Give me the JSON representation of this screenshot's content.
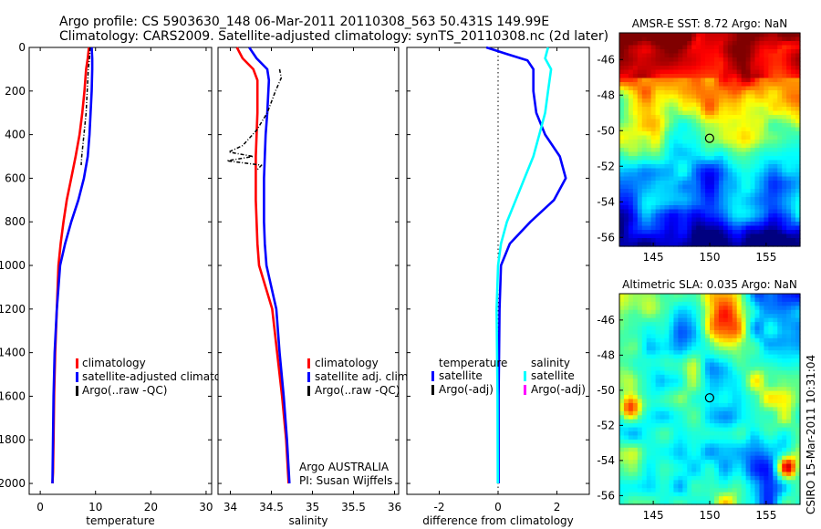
{
  "header": {
    "line1": "Argo profile: CS 5903630_148 06-Mar-2011 20110308_563 50.431S 149.99E",
    "line2": "Climatology: CARS2009. Satellite-adjusted climatology: synTS_20110308.nc (2d later)"
  },
  "side_stamp": "CSIRO 15-Mar-2011 10:31:04",
  "colors": {
    "climatology": "#ff0000",
    "satellite": "#0000ff",
    "argo": "#000000",
    "salinity_satellite": "#00ffff",
    "argo_adj_salinity": "#ff00ff"
  },
  "chart_data": [
    {
      "type": "line",
      "id": "temperature",
      "xlabel": "temperature",
      "ylabel": "",
      "xlim": [
        -2,
        31
      ],
      "ylim": [
        2050,
        0
      ],
      "xticks": [
        0,
        10,
        20,
        30
      ],
      "yticks": [
        0,
        200,
        400,
        600,
        800,
        1000,
        1200,
        1400,
        1600,
        1800,
        2000
      ],
      "legend": [
        "climatology",
        "satellite-adjusted climatology",
        "Argo(..raw -QC)"
      ],
      "series": [
        {
          "name": "climatology",
          "color": "#ff0000",
          "x": [
            8.8,
            8.6,
            8.3,
            8.0,
            7.6,
            7.1,
            6.4,
            5.6,
            4.8,
            4.2,
            3.7,
            3.3,
            3.0,
            2.7,
            2.5,
            2.4,
            2.3,
            2.2
          ],
          "y": [
            0,
            50,
            100,
            200,
            300,
            400,
            500,
            600,
            700,
            800,
            900,
            1000,
            1200,
            1400,
            1600,
            1800,
            1950,
            2000
          ]
        },
        {
          "name": "satellite-adjusted climatology",
          "color": "#0000ff",
          "x": [
            9.3,
            9.4,
            9.4,
            9.3,
            9.1,
            8.9,
            8.6,
            7.9,
            6.9,
            5.6,
            4.5,
            3.6,
            3.0,
            2.6,
            2.4,
            2.3,
            2.2
          ],
          "y": [
            0,
            50,
            100,
            200,
            300,
            400,
            500,
            600,
            700,
            800,
            900,
            1000,
            1200,
            1400,
            1600,
            1800,
            2000
          ]
        },
        {
          "name": "Argo(..raw -QC)",
          "color": "#000000",
          "x": [
            9.0,
            8.9,
            8.7,
            8.5,
            8.3,
            8.1,
            7.9,
            7.7,
            7.5,
            7.4
          ],
          "y": [
            0,
            50,
            100,
            200,
            300,
            350,
            400,
            450,
            500,
            540
          ]
        }
      ]
    },
    {
      "type": "line",
      "id": "salinity",
      "xlabel": "salinity",
      "ylabel": "",
      "xlim": [
        33.85,
        36.05
      ],
      "ylim": [
        2050,
        0
      ],
      "xticks": [
        34,
        34.5,
        35,
        35.5,
        36
      ],
      "legend": [
        "climatology",
        "satellite adj. clim.",
        "Argo(..raw -QC)"
      ],
      "annotation": [
        "Argo AUSTRALIA",
        "PI: Susan Wijffels"
      ],
      "series": [
        {
          "name": "climatology",
          "color": "#ff0000",
          "x": [
            34.08,
            34.15,
            34.28,
            34.33,
            34.33,
            34.32,
            34.31,
            34.31,
            34.31,
            34.32,
            34.33,
            34.35,
            34.43,
            34.51,
            34.57,
            34.63,
            34.68,
            34.71
          ],
          "y": [
            0,
            50,
            100,
            150,
            300,
            400,
            500,
            600,
            700,
            800,
            900,
            1000,
            1100,
            1200,
            1400,
            1600,
            1800,
            2000
          ]
        },
        {
          "name": "satellite adj. clim.",
          "color": "#0000ff",
          "x": [
            34.23,
            34.32,
            34.45,
            34.47,
            34.45,
            34.43,
            34.42,
            34.41,
            34.41,
            34.41,
            34.42,
            34.44,
            34.5,
            34.56,
            34.6,
            34.65,
            34.69,
            34.72
          ],
          "y": [
            0,
            50,
            100,
            150,
            300,
            400,
            500,
            600,
            700,
            800,
            900,
            1000,
            1100,
            1200,
            1400,
            1600,
            1800,
            2000
          ]
        },
        {
          "name": "Argo(..raw -QC)",
          "color": "#000000",
          "x": [
            34.6,
            34.62,
            34.55,
            34.45,
            34.32,
            34.15,
            33.98,
            34.28,
            33.96,
            34.38,
            34.33
          ],
          "y": [
            100,
            140,
            200,
            300,
            380,
            450,
            480,
            500,
            520,
            540,
            560
          ]
        }
      ]
    },
    {
      "type": "line",
      "id": "difference",
      "xlabel": "difference from climatology",
      "ylabel": "",
      "xlim": [
        -3.1,
        3.1
      ],
      "ylim": [
        2050,
        0
      ],
      "xticks": [
        -2,
        0,
        2
      ],
      "zero_line": true,
      "legend": [
        "temperature",
        "satellite",
        "Argo(-adj)",
        "salinity",
        "satellite",
        "Argo(-adj)"
      ],
      "series": [
        {
          "name": "satellite",
          "group": "temperature",
          "color": "#0000ff",
          "x": [
            -0.4,
            0.3,
            1.0,
            1.2,
            1.2,
            1.3,
            1.6,
            2.1,
            2.3,
            1.9,
            1.1,
            0.4,
            0.1,
            0.05,
            0.02,
            0.02
          ],
          "y": [
            0,
            30,
            60,
            100,
            200,
            300,
            400,
            500,
            600,
            700,
            800,
            900,
            1000,
            1200,
            1600,
            2000
          ]
        },
        {
          "name": "satellite",
          "group": "salinity",
          "color": "#00ffff",
          "x": [
            1.7,
            1.6,
            1.8,
            1.7,
            1.6,
            1.4,
            1.2,
            0.9,
            0.6,
            0.3,
            0.1,
            0.0,
            -0.05,
            -0.02,
            -0.01
          ],
          "y": [
            0,
            50,
            100,
            200,
            300,
            400,
            500,
            600,
            700,
            800,
            900,
            1000,
            1200,
            1600,
            2000
          ]
        }
      ]
    },
    {
      "type": "heatmap",
      "id": "sst_map",
      "title": "AMSR-E SST: 8.72 Argo: NaN",
      "xlim": [
        142,
        158
      ],
      "ylim": [
        -56.5,
        -44.5
      ],
      "xticks": [
        145,
        150,
        155
      ],
      "yticks": [
        -46,
        -48,
        -50,
        -52,
        -54,
        -56
      ],
      "marker": {
        "lon": 149.99,
        "lat": -50.431
      }
    },
    {
      "type": "heatmap",
      "id": "sla_map",
      "title": "Altimetric SLA: 0.035 Argo: NaN",
      "xlim": [
        142,
        158
      ],
      "ylim": [
        -56.5,
        -44.5
      ],
      "xticks": [
        145,
        150,
        155
      ],
      "yticks": [
        -46,
        -48,
        -50,
        -52,
        -54,
        -56
      ],
      "marker": {
        "lon": 149.99,
        "lat": -50.431
      }
    }
  ]
}
